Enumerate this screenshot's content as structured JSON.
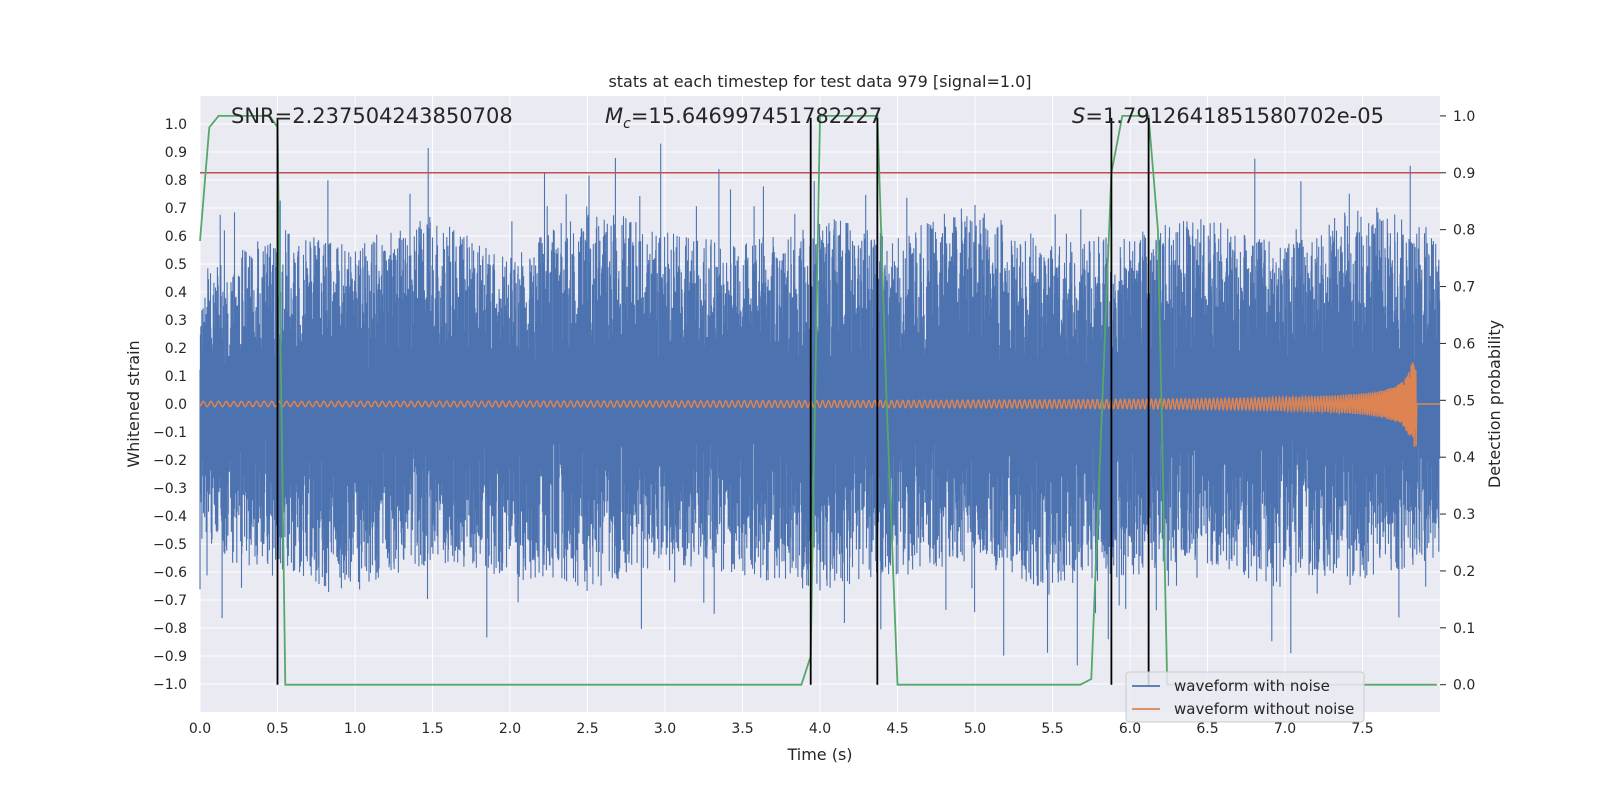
{
  "chart_data": {
    "type": "line",
    "title": "stats at each timestep for test data 979 [signal=1.0]",
    "xlabel": "Time (s)",
    "ylabel": "Whitened strain",
    "y2label": "Detection probability",
    "xlim": [
      0.0,
      8.0
    ],
    "ylim": [
      -1.1,
      1.1
    ],
    "y2lim": [
      -0.048,
      1.035
    ],
    "xticks": [
      0.0,
      0.5,
      1.0,
      1.5,
      2.0,
      2.5,
      3.0,
      3.5,
      4.0,
      4.5,
      5.0,
      5.5,
      6.0,
      6.5,
      7.0,
      7.5
    ],
    "xtick_labels": [
      "0.0",
      "0.5",
      "1.0",
      "1.5",
      "2.0",
      "2.5",
      "3.0",
      "3.5",
      "4.0",
      "4.5",
      "5.0",
      "5.5",
      "6.0",
      "6.5",
      "7.0",
      "7.5"
    ],
    "yticks": [
      1.0,
      0.9,
      0.8,
      0.7,
      0.6,
      0.5,
      0.4,
      0.3,
      0.2,
      0.1,
      0.0,
      -0.1,
      -0.2,
      -0.3,
      -0.4,
      -0.5,
      -0.6,
      -0.7,
      -0.8,
      -0.9,
      -1.0
    ],
    "ytick_labels": [
      "1.0",
      "0.9",
      "0.8",
      "0.7",
      "0.6",
      "0.5",
      "0.4",
      "0.3",
      "0.2",
      "0.1",
      "0.0",
      "−0.1",
      "−0.2",
      "−0.3",
      "−0.4",
      "−0.5",
      "−0.6",
      "−0.7",
      "−0.8",
      "−0.9",
      "−1.0"
    ],
    "y2ticks": [
      1.0,
      0.9,
      0.8,
      0.7,
      0.6,
      0.5,
      0.4,
      0.3,
      0.2,
      0.1,
      0.0
    ],
    "y2tick_labels": [
      "1.0",
      "0.9",
      "0.8",
      "0.7",
      "0.6",
      "0.5",
      "0.4",
      "0.3",
      "0.2",
      "0.1",
      "0.0"
    ],
    "annotations": {
      "snr": "SNR=2.237504243850708",
      "mc_symbol": "M",
      "mc_sub": "c",
      "mc_value": "=15.646997451782227",
      "s_symbol": "S",
      "s_value": "=1.7912641851580702e-05"
    },
    "threshold": {
      "value": 0.9,
      "axis": "right",
      "color": "#c44e52"
    },
    "vertical_markers": [
      0.5,
      3.94,
      4.37,
      5.88,
      6.12
    ],
    "series": [
      {
        "name": "waveform with noise",
        "color": "#4c72b0",
        "axis": "left",
        "envelope_upper": [
          0.35,
          0.5,
          0.45,
          0.55,
          0.4,
          0.6,
          0.5,
          0.45,
          0.55,
          0.5,
          0.6,
          0.45,
          0.5,
          0.55,
          0.45,
          0.6,
          0.5
        ],
        "envelope_lower": [
          -0.4,
          -0.5,
          -0.55,
          -0.45,
          -0.5,
          -0.55,
          -0.45,
          -0.5,
          -0.55,
          -0.5,
          -0.45,
          -0.55,
          -0.5,
          -0.45,
          -0.55,
          -0.5,
          -0.45
        ]
      },
      {
        "name": "waveform without noise",
        "color": "#dd8452",
        "axis": "left",
        "chirp_end_time": 7.85,
        "peak_amplitude": 0.15
      },
      {
        "name": "detection probability",
        "color": "#55a868",
        "axis": "right",
        "x": [
          0.0,
          0.06,
          0.12,
          0.45,
          0.5,
          0.55,
          0.6,
          3.88,
          3.94,
          4.0,
          4.37,
          4.43,
          4.5,
          5.68,
          5.75,
          5.88,
          5.95,
          6.12,
          6.18,
          6.24,
          7.98
        ],
        "y": [
          0.78,
          0.98,
          1.0,
          1.0,
          0.98,
          0.0,
          0.0,
          0.0,
          0.05,
          1.0,
          1.0,
          0.5,
          0.0,
          0.0,
          0.01,
          0.9,
          1.0,
          1.0,
          0.8,
          0.0,
          0.0
        ]
      }
    ],
    "legend": {
      "position": "lower-right",
      "entries": [
        "waveform with noise",
        "waveform without noise"
      ]
    }
  }
}
